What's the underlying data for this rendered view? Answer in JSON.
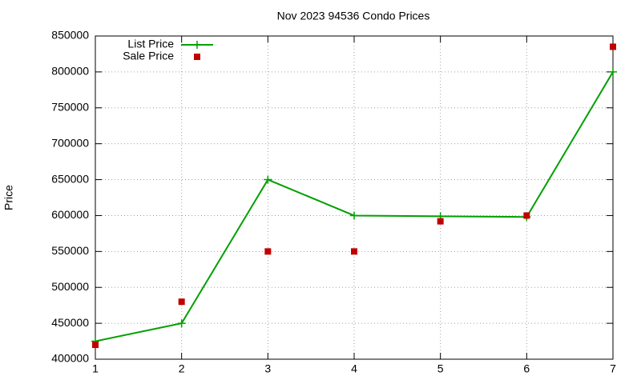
{
  "chart_data": {
    "type": "line",
    "title": "Nov 2023 94536 Condo Prices",
    "y_label": "Price",
    "x": [
      1,
      2,
      3,
      4,
      5,
      6,
      7
    ],
    "series": [
      {
        "name": "List Price",
        "color": "#00a000",
        "mode": "lines+points",
        "values": [
          425000,
          450000,
          650000,
          600000,
          599000,
          598000,
          800000
        ]
      },
      {
        "name": "Sale Price",
        "color": "#c00000",
        "mode": "points",
        "values": [
          420000,
          480000,
          550000,
          550000,
          592000,
          600000,
          835000
        ]
      }
    ],
    "xlim": [
      1,
      7
    ],
    "xticks": [
      1,
      2,
      3,
      4,
      5,
      6,
      7
    ],
    "ylim": [
      400000,
      850000
    ],
    "yticks": [
      400000,
      450000,
      500000,
      550000,
      600000,
      650000,
      700000,
      750000,
      800000,
      850000
    ],
    "grid": true,
    "legend": "top-left"
  }
}
